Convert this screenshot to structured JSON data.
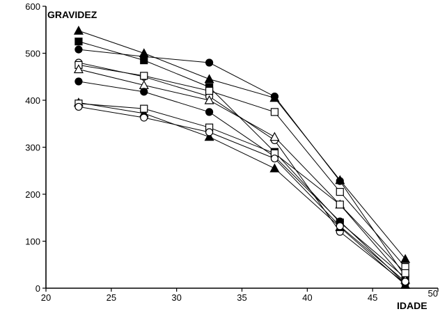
{
  "chart_data": {
    "type": "line",
    "ylabel": "GRAVIDEZ",
    "xlabel": "IDADE",
    "xlim": [
      20,
      50
    ],
    "ylim": [
      0,
      600
    ],
    "x_ticks": [
      "20",
      "25",
      "30",
      "35",
      "40",
      "45",
      "50"
    ],
    "y_ticks": [
      "0",
      "100",
      "200",
      "300",
      "400",
      "500",
      "600"
    ],
    "grid": false,
    "legend": "none",
    "x": [
      22.5,
      27.5,
      32.5,
      37.5,
      42.5,
      47.5
    ],
    "series": [
      {
        "marker": "filled-triangle",
        "values": [
          548,
          500,
          445,
          405,
          230,
          62
        ]
      },
      {
        "marker": "filled-square",
        "values": [
          525,
          485,
          428,
          290,
          140,
          22
        ]
      },
      {
        "marker": "filled-circle",
        "values": [
          508,
          493,
          480,
          408,
          228,
          25
        ]
      },
      {
        "marker": "open-circle",
        "values": [
          480,
          450,
          408,
          315,
          120,
          10
        ]
      },
      {
        "marker": "open-square",
        "values": [
          475,
          452,
          420,
          375,
          205,
          45
        ]
      },
      {
        "marker": "open-triangle",
        "values": [
          466,
          432,
          400,
          322,
          178,
          18
        ]
      },
      {
        "marker": "filled-circle",
        "values": [
          440,
          418,
          375,
          280,
          142,
          10
        ]
      },
      {
        "marker": "filled-triangle",
        "values": [
          395,
          372,
          322,
          255,
          130,
          7
        ]
      },
      {
        "marker": "open-square",
        "values": [
          393,
          382,
          342,
          287,
          178,
          32
        ]
      },
      {
        "marker": "open-circle",
        "values": [
          386,
          363,
          332,
          276,
          132,
          14
        ]
      }
    ]
  }
}
